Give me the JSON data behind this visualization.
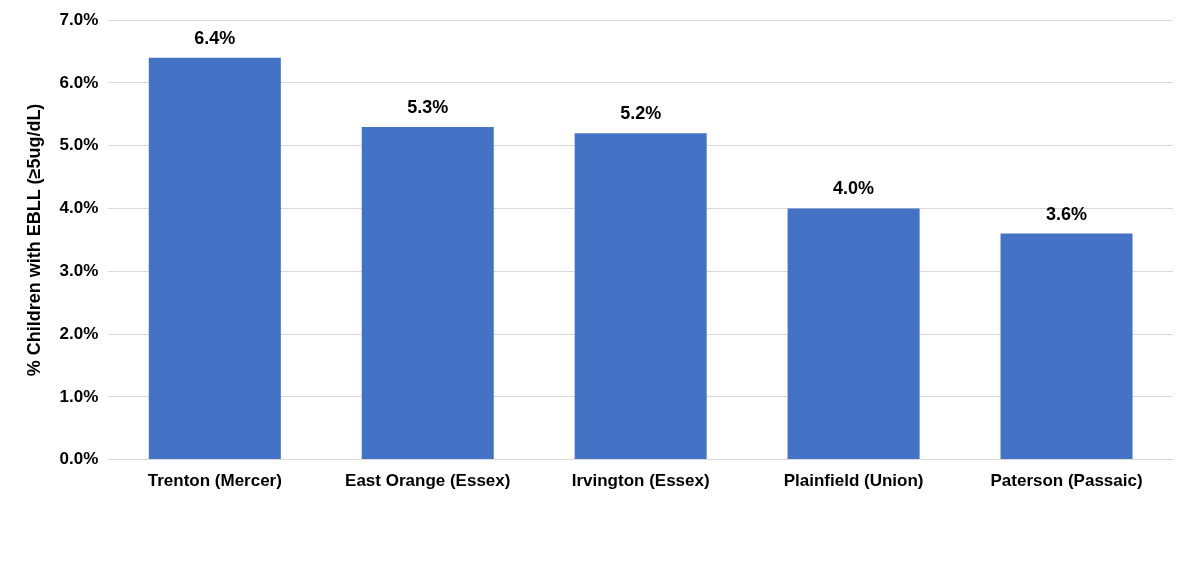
{
  "chart_data": {
    "type": "bar",
    "ylabel": "% Children with EBLL (≥5ug/dL)",
    "categories": [
      "Trenton (Mercer)",
      "East Orange (Essex)",
      "Irvington (Essex)",
      "Plainfield (Union)",
      "Paterson (Passaic)"
    ],
    "values": [
      6.4,
      5.3,
      5.2,
      4.0,
      3.6
    ],
    "value_labels": [
      "6.4%",
      "5.3%",
      "5.2%",
      "4.0%",
      "3.6%"
    ],
    "color": "#4472c4",
    "ylim": [
      0,
      7
    ],
    "yticks": [
      {
        "value": 0,
        "label": "0.0%"
      },
      {
        "value": 1,
        "label": "1.0%"
      },
      {
        "value": 2,
        "label": "2.0%"
      },
      {
        "value": 3,
        "label": "3.0%"
      },
      {
        "value": 4,
        "label": "4.0%"
      },
      {
        "value": 5,
        "label": "5.0%"
      },
      {
        "value": 6,
        "label": "6.0%"
      },
      {
        "value": 7,
        "label": "7.0%"
      }
    ],
    "grid": "y"
  }
}
